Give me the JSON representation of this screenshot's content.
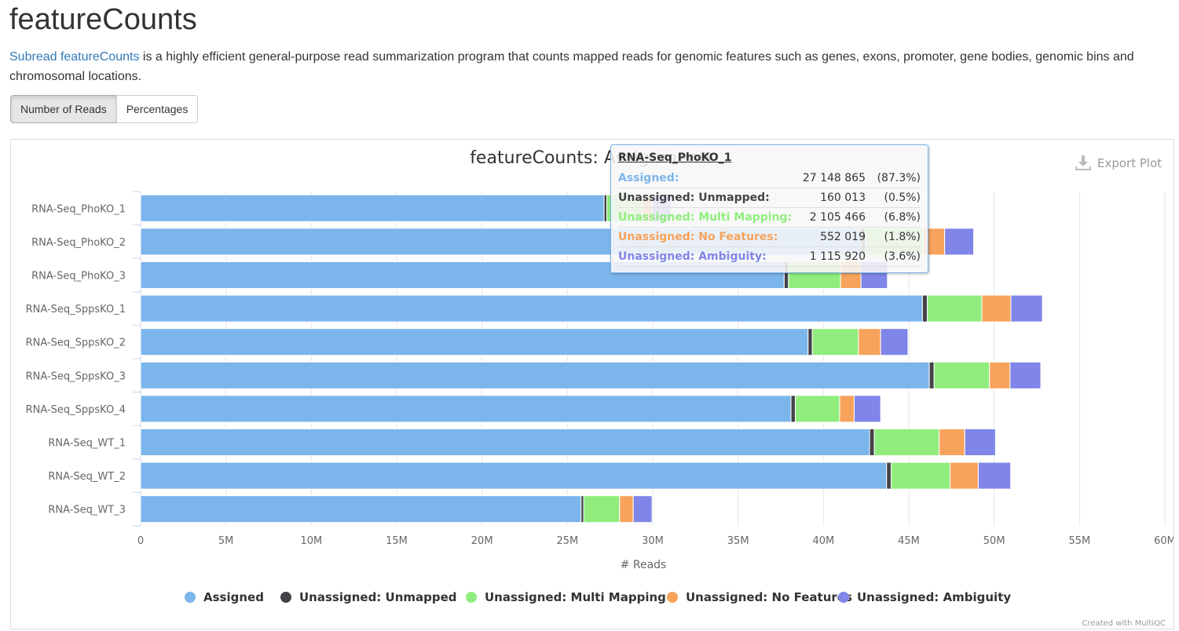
{
  "page": {
    "title": "featureCounts",
    "link_text": "Subread featureCounts",
    "description_rest": " is a highly efficient general-purpose read summarization program that counts mapped reads for genomic features such as genes, exons, promoter, gene bodies, genomic bins and chromosomal locations.",
    "buttons": {
      "reads": "Number of Reads",
      "percentages": "Percentages"
    },
    "export_label": "Export Plot",
    "credit": "Created with MultiQC"
  },
  "colors": {
    "assigned": "#7cb5ec",
    "unmapped": "#434348",
    "multi": "#90ed7d",
    "nofeatures": "#f7a35c",
    "ambiguity": "#8085e9",
    "link": "#337ab7"
  },
  "icons": {
    "export": "download-icon"
  },
  "tooltip": {
    "sample": "RNA-Seq_PhoKO_1",
    "rows": [
      {
        "label": "Assigned:",
        "value": "27 148 865",
        "pct": "(87.3%)",
        "color": "#7cb5ec"
      },
      {
        "label": "Unassigned: Unmapped:",
        "value": "160 013",
        "pct": "(0.5%)",
        "color": "#434348"
      },
      {
        "label": "Unassigned: Multi Mapping:",
        "value": "2 105 466",
        "pct": "(6.8%)",
        "color": "#90ed7d"
      },
      {
        "label": "Unassigned: No Features:",
        "value": "552 019",
        "pct": "(1.8%)",
        "color": "#f7a35c"
      },
      {
        "label": "Unassigned: Ambiguity:",
        "value": "1 115 920",
        "pct": "(3.6%)",
        "color": "#8085e9"
      }
    ]
  },
  "chart_data": {
    "type": "bar",
    "orientation": "horizontal",
    "stacked": true,
    "title": "featureCounts: Assignments",
    "xlabel": "# Reads",
    "ylabel": "",
    "xlim": [
      0,
      60000000
    ],
    "x_ticks": [
      "0",
      "5M",
      "10M",
      "15M",
      "20M",
      "25M",
      "30M",
      "35M",
      "40M",
      "45M",
      "50M",
      "55M",
      "60M"
    ],
    "grid": true,
    "legend_position": "bottom",
    "categories": [
      "RNA-Seq_PhoKO_1",
      "RNA-Seq_PhoKO_2",
      "RNA-Seq_PhoKO_3",
      "RNA-Seq_SppsKO_1",
      "RNA-Seq_SppsKO_2",
      "RNA-Seq_SppsKO_3",
      "RNA-Seq_SppsKO_4",
      "RNA-Seq_WT_1",
      "RNA-Seq_WT_2",
      "RNA-Seq_WT_3"
    ],
    "series": [
      {
        "name": "Assigned",
        "color": "#7cb5ec",
        "values": [
          27148865,
          42200000,
          37700000,
          45800000,
          39100000,
          46200000,
          38100000,
          42700000,
          43700000,
          25800000
        ]
      },
      {
        "name": "Unassigned: Unmapped",
        "color": "#434348",
        "values": [
          160013,
          250000,
          250000,
          280000,
          250000,
          280000,
          250000,
          280000,
          270000,
          160000
        ]
      },
      {
        "name": "Unassigned: Multi Mapping",
        "color": "#90ed7d",
        "values": [
          2105466,
          3400000,
          3050000,
          3200000,
          2700000,
          3250000,
          2600000,
          3800000,
          3450000,
          2100000
        ]
      },
      {
        "name": "Unassigned: No Features",
        "color": "#f7a35c",
        "values": [
          552019,
          1250000,
          1200000,
          1700000,
          1300000,
          1200000,
          850000,
          1500000,
          1650000,
          800000
        ]
      },
      {
        "name": "Unassigned: Ambiguity",
        "color": "#8085e9",
        "values": [
          1115920,
          1700000,
          1550000,
          1850000,
          1600000,
          1800000,
          1550000,
          1800000,
          1900000,
          1100000
        ]
      }
    ]
  }
}
